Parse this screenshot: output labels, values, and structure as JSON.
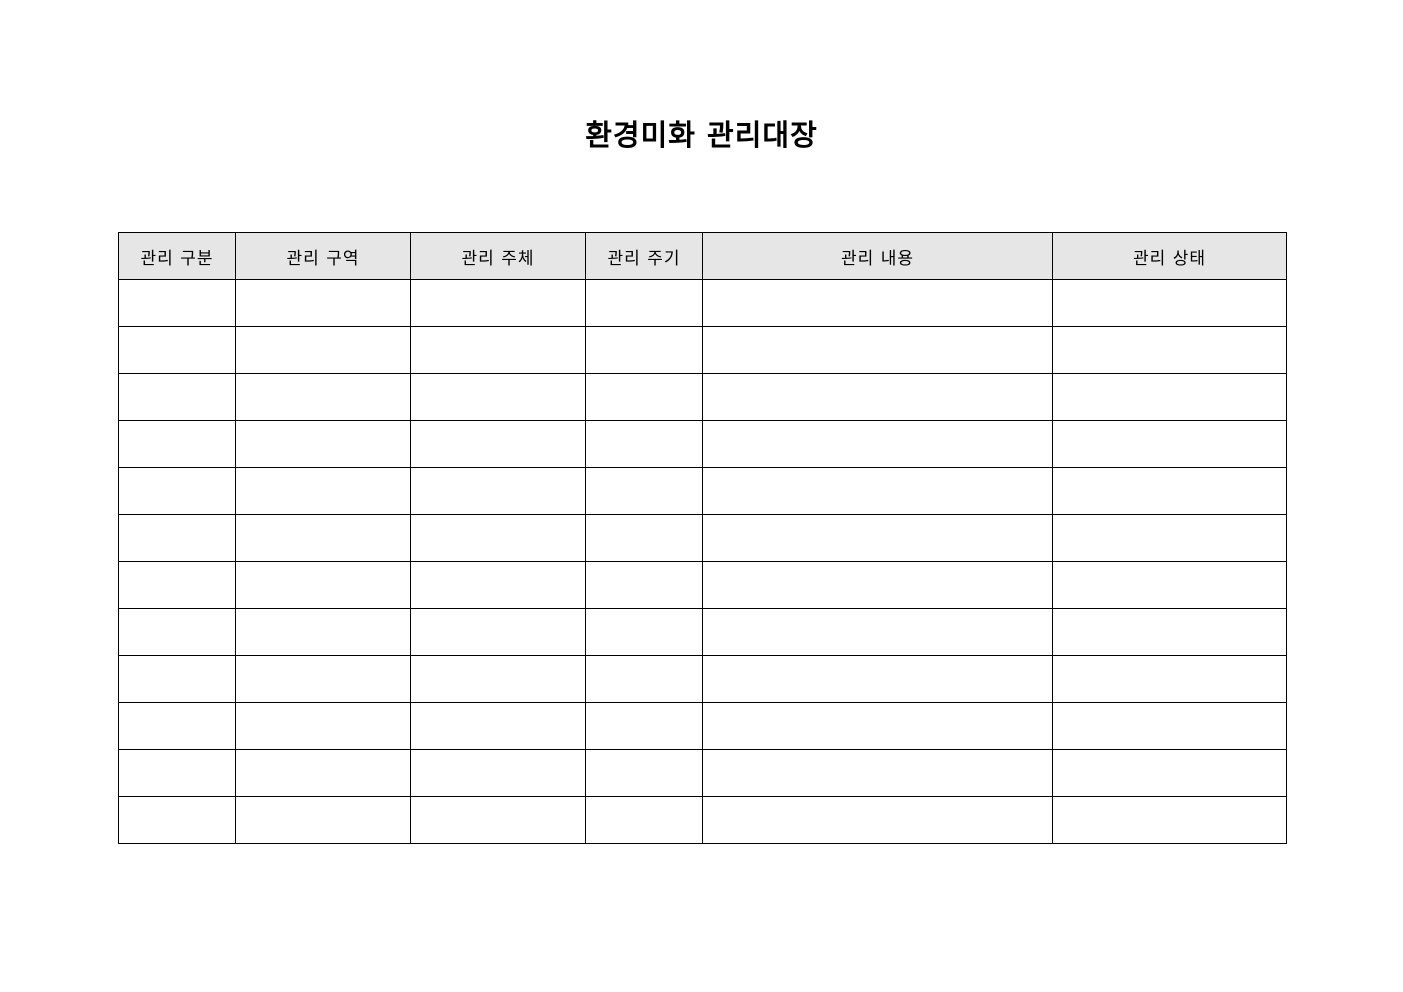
{
  "title": "환경미화 관리대장",
  "table": {
    "headers": [
      "관리 구분",
      "관리 구역",
      "관리 주체",
      "관리 주기",
      "관리 내용",
      "관리 상태"
    ],
    "rows": [
      [
        "",
        "",
        "",
        "",
        "",
        ""
      ],
      [
        "",
        "",
        "",
        "",
        "",
        ""
      ],
      [
        "",
        "",
        "",
        "",
        "",
        ""
      ],
      [
        "",
        "",
        "",
        "",
        "",
        ""
      ],
      [
        "",
        "",
        "",
        "",
        "",
        ""
      ],
      [
        "",
        "",
        "",
        "",
        "",
        ""
      ],
      [
        "",
        "",
        "",
        "",
        "",
        ""
      ],
      [
        "",
        "",
        "",
        "",
        "",
        ""
      ],
      [
        "",
        "",
        "",
        "",
        "",
        ""
      ],
      [
        "",
        "",
        "",
        "",
        "",
        ""
      ],
      [
        "",
        "",
        "",
        "",
        "",
        ""
      ],
      [
        "",
        "",
        "",
        "",
        "",
        ""
      ]
    ]
  }
}
